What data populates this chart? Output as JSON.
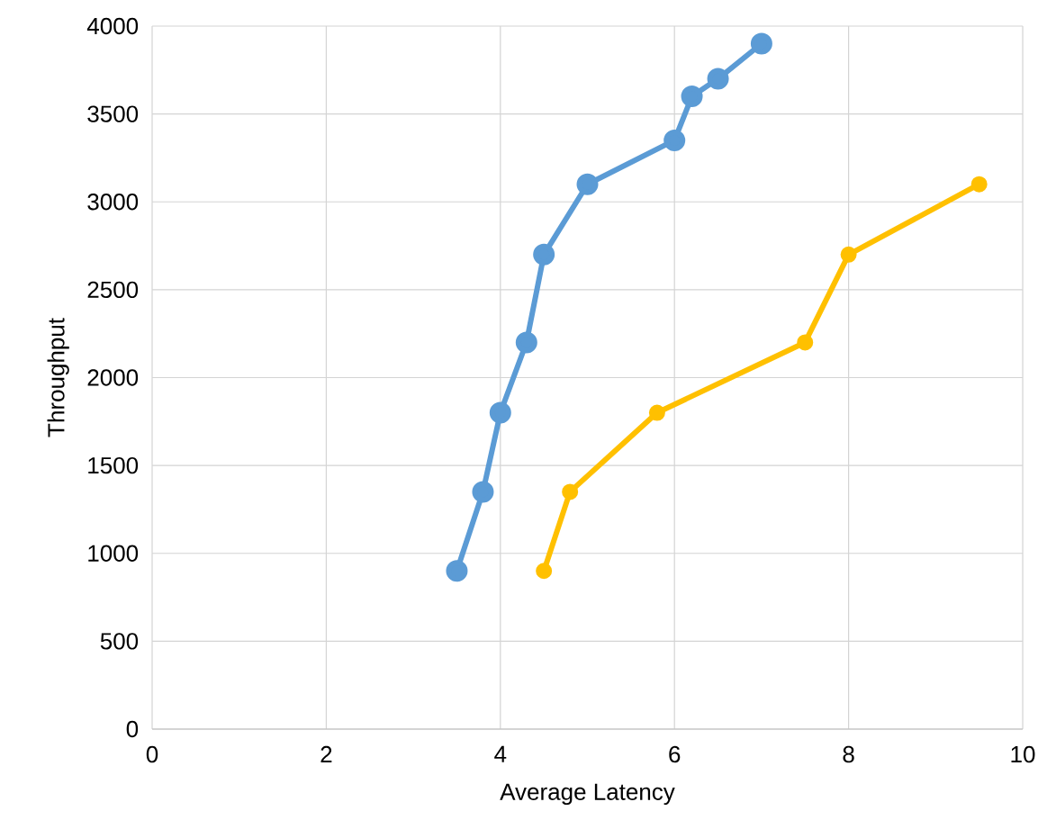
{
  "chart_data": {
    "type": "line",
    "xlabel": "Average Latency",
    "ylabel": "Throughput",
    "xlim": [
      0,
      10
    ],
    "xticks": [
      0,
      2,
      4,
      6,
      8,
      10
    ],
    "ylim": [
      0,
      4000
    ],
    "yticks": [
      0,
      500,
      1000,
      1500,
      2000,
      2500,
      3000,
      3500,
      4000
    ],
    "grid": true,
    "marker": "circle",
    "line_style": "solid",
    "series": [
      {
        "color": "#5b9bd5",
        "x": [
          3.5,
          3.8,
          4.0,
          4.3,
          4.5,
          5.0,
          6.0,
          6.2,
          6.5,
          7.0
        ],
        "values": [
          900,
          1350,
          1800,
          2200,
          2700,
          3100,
          3350,
          3600,
          3700,
          3900
        ]
      },
      {
        "color": "#ffc000",
        "x": [
          4.5,
          4.8,
          5.8,
          7.5,
          8.0,
          9.5
        ],
        "values": [
          900,
          1350,
          1800,
          2200,
          2700,
          3100
        ]
      }
    ]
  }
}
